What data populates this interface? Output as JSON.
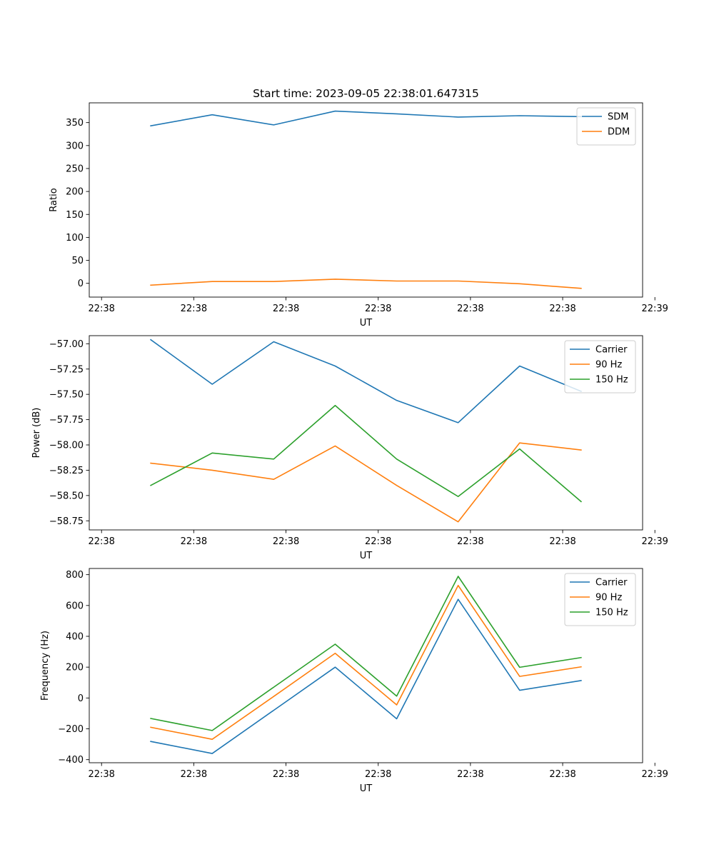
{
  "chart_data": [
    {
      "type": "line",
      "title": "Start time: 2023-09-05 22:38:01.647315",
      "xlabel": "UT",
      "ylabel": "Ratio",
      "xlim": [
        0,
        9
      ],
      "x_tick_values": [
        0.2,
        1.7,
        3.2,
        4.7,
        6.2,
        7.7,
        9.2
      ],
      "x_tick_labels": [
        "22:38",
        "22:38",
        "22:38",
        "22:38",
        "22:38",
        "22:38",
        "22:39"
      ],
      "ylim": [
        -30,
        393
      ],
      "y_ticks": [
        0,
        50,
        100,
        150,
        200,
        250,
        300,
        350
      ],
      "y_tick_labels": [
        "0",
        "50",
        "100",
        "150",
        "200",
        "250",
        "300",
        "350"
      ],
      "x": [
        1,
        2,
        3,
        4,
        5,
        6,
        7,
        8
      ],
      "legend_position": "top-right",
      "series": [
        {
          "name": "SDM",
          "color": "#1f77b4",
          "values": [
            343,
            367,
            345,
            375,
            369,
            362,
            365,
            363
          ]
        },
        {
          "name": "DDM",
          "color": "#ff7f0e",
          "values": [
            -4,
            4,
            4,
            9,
            5,
            5,
            -1,
            -11
          ]
        }
      ]
    },
    {
      "type": "line",
      "title": "",
      "xlabel": "UT",
      "ylabel": "Power (dB)",
      "xlim": [
        0,
        9
      ],
      "x_tick_values": [
        0.2,
        1.7,
        3.2,
        4.7,
        6.2,
        7.7,
        9.2
      ],
      "x_tick_labels": [
        "22:38",
        "22:38",
        "22:38",
        "22:38",
        "22:38",
        "22:38",
        "22:39"
      ],
      "ylim": [
        -58.84,
        -56.92
      ],
      "y_ticks": [
        -57.0,
        -57.25,
        -57.5,
        -57.75,
        -58.0,
        -58.25,
        -58.5,
        -58.75
      ],
      "y_tick_labels": [
        "−57.00",
        "−57.25",
        "−57.50",
        "−57.75",
        "−58.00",
        "−58.25",
        "−58.50",
        "−58.75"
      ],
      "x": [
        1,
        2,
        3,
        4,
        5,
        6,
        7,
        8
      ],
      "legend_position": "top-right",
      "series": [
        {
          "name": "Carrier",
          "color": "#1f77b4",
          "values": [
            -56.96,
            -57.4,
            -56.98,
            -57.22,
            -57.56,
            -57.78,
            -57.22,
            -57.47
          ]
        },
        {
          "name": "90 Hz",
          "color": "#ff7f0e",
          "values": [
            -58.18,
            -58.25,
            -58.34,
            -58.01,
            -58.4,
            -58.76,
            -57.98,
            -58.05
          ]
        },
        {
          "name": "150 Hz",
          "color": "#2ca02c",
          "values": [
            -58.4,
            -58.08,
            -58.14,
            -57.61,
            -58.14,
            -58.51,
            -58.04,
            -58.56
          ]
        }
      ]
    },
    {
      "type": "line",
      "title": "",
      "xlabel": "UT",
      "ylabel": "Frequency (Hz)",
      "xlim": [
        0,
        9
      ],
      "x_tick_values": [
        0.2,
        1.7,
        3.2,
        4.7,
        6.2,
        7.7,
        9.2
      ],
      "x_tick_labels": [
        "22:38",
        "22:38",
        "22:38",
        "22:38",
        "22:38",
        "22:38",
        "22:39"
      ],
      "ylim": [
        -420,
        840
      ],
      "y_ticks": [
        -400,
        -200,
        0,
        200,
        400,
        600,
        800
      ],
      "y_tick_labels": [
        "−400",
        "−200",
        "0",
        "200",
        "400",
        "600",
        "800"
      ],
      "x": [
        1,
        2,
        3,
        4,
        5,
        6,
        7,
        8
      ],
      "legend_position": "top-right",
      "series": [
        {
          "name": "Carrier",
          "color": "#1f77b4",
          "values": [
            -282,
            -360,
            -80,
            200,
            -135,
            640,
            50,
            113
          ]
        },
        {
          "name": "90 Hz",
          "color": "#ff7f0e",
          "values": [
            -190,
            -268,
            10,
            290,
            -45,
            730,
            140,
            202
          ]
        },
        {
          "name": "150 Hz",
          "color": "#2ca02c",
          "values": [
            -133,
            -211,
            70,
            349,
            12,
            789,
            199,
            262
          ]
        }
      ]
    }
  ]
}
